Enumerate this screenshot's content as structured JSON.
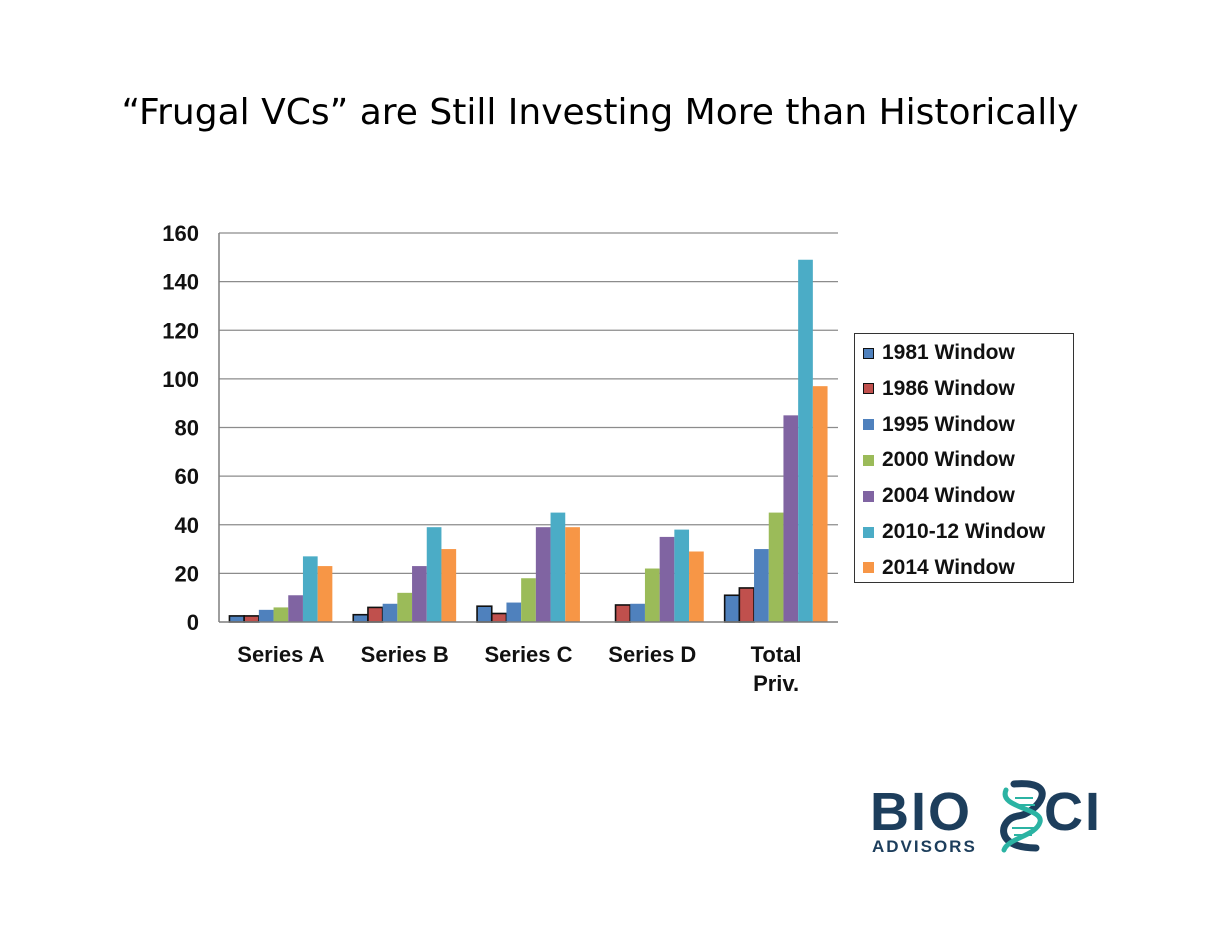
{
  "slide": {
    "title": "“Frugal VCs” are Still Investing More than Historically"
  },
  "logo": {
    "name_left": "BIO",
    "name_right": "CI",
    "tagline": "ADVISORS",
    "navy": "#1d3e5c",
    "teal": "#2bb3a3"
  },
  "chart_data": {
    "type": "bar",
    "title": "",
    "xlabel": "",
    "ylabel": "",
    "ylim": [
      0,
      160
    ],
    "yticks": [
      0,
      20,
      40,
      60,
      80,
      100,
      120,
      140,
      160
    ],
    "grid": true,
    "legend_position": "right",
    "categories": [
      [
        "Series A"
      ],
      [
        "Series B"
      ],
      [
        "Series C"
      ],
      [
        "Series D"
      ],
      [
        "Total",
        "Priv."
      ]
    ],
    "series": [
      {
        "name": "1981 Window",
        "color": "#4f81bd",
        "outlined": true,
        "values": [
          2.5,
          3,
          6.5,
          0,
          11
        ]
      },
      {
        "name": "1986 Window",
        "color": "#c0504d",
        "outlined": true,
        "values": [
          2.5,
          6,
          3.5,
          7,
          14
        ]
      },
      {
        "name": "1995 Window",
        "color": "#4f81bd",
        "outlined": false,
        "values": [
          5,
          7.5,
          8,
          7.5,
          30
        ]
      },
      {
        "name": "2000 Window",
        "color": "#9bbb59",
        "outlined": false,
        "values": [
          6,
          12,
          18,
          22,
          45
        ]
      },
      {
        "name": "2004 Window",
        "color": "#8064a2",
        "outlined": false,
        "values": [
          11,
          23,
          39,
          35,
          85
        ]
      },
      {
        "name": "2010-12 Window",
        "color": "#4bacc6",
        "outlined": false,
        "values": [
          27,
          39,
          45,
          38,
          149
        ]
      },
      {
        "name": "2014 Window",
        "color": "#f79646",
        "outlined": false,
        "values": [
          23,
          30,
          39,
          29,
          97
        ]
      }
    ]
  }
}
